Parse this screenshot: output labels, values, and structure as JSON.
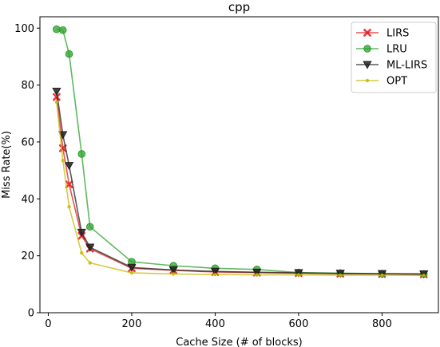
{
  "chart_data": {
    "type": "line",
    "title": "cpp",
    "xlabel": "Cache Size (# of blocks)",
    "ylabel": "Miss Rate(%)",
    "xlim": [
      -20,
      935
    ],
    "ylim": [
      0,
      104
    ],
    "xticks": [
      0,
      200,
      400,
      600,
      800
    ],
    "yticks": [
      0,
      20,
      40,
      60,
      80,
      100
    ],
    "grid": false,
    "legend_position": "top-right",
    "series": [
      {
        "name": "LIRS",
        "color": "#e41a1c",
        "marker": "x",
        "x": [
          20,
          35,
          50,
          80,
          100,
          200,
          300,
          400,
          500,
          600,
          700,
          800,
          900
        ],
        "values": [
          75.8,
          57.8,
          45.1,
          27.0,
          22.5,
          15.6,
          14.9,
          14.3,
          14.1,
          13.9,
          13.7,
          13.6,
          13.5
        ]
      },
      {
        "name": "LRU",
        "color": "#2ca02c",
        "marker": "o",
        "x": [
          20,
          35,
          50,
          80,
          100,
          200,
          300,
          400,
          500,
          600,
          700,
          800,
          900
        ],
        "values": [
          99.6,
          99.3,
          90.9,
          55.8,
          30.2,
          17.9,
          16.5,
          15.6,
          15.2,
          14.1,
          13.9,
          13.7,
          13.6
        ]
      },
      {
        "name": "ML-LIRS",
        "color": "#222222",
        "marker": "v",
        "x": [
          20,
          35,
          50,
          80,
          100,
          200,
          300,
          400,
          500,
          600,
          700,
          800,
          900
        ],
        "values": [
          77.8,
          62.5,
          51.7,
          28.2,
          23.0,
          15.9,
          15.0,
          14.5,
          14.2,
          14.0,
          13.8,
          13.7,
          13.6
        ]
      },
      {
        "name": "OPT",
        "color": "#c9b800",
        "marker": ".",
        "x": [
          20,
          35,
          50,
          80,
          100,
          200,
          300,
          400,
          500,
          600,
          700,
          800,
          900
        ],
        "values": [
          74.0,
          53.5,
          37.2,
          21.0,
          17.5,
          14.0,
          13.6,
          13.4,
          13.3,
          13.3,
          13.2,
          13.2,
          13.1
        ]
      }
    ]
  }
}
